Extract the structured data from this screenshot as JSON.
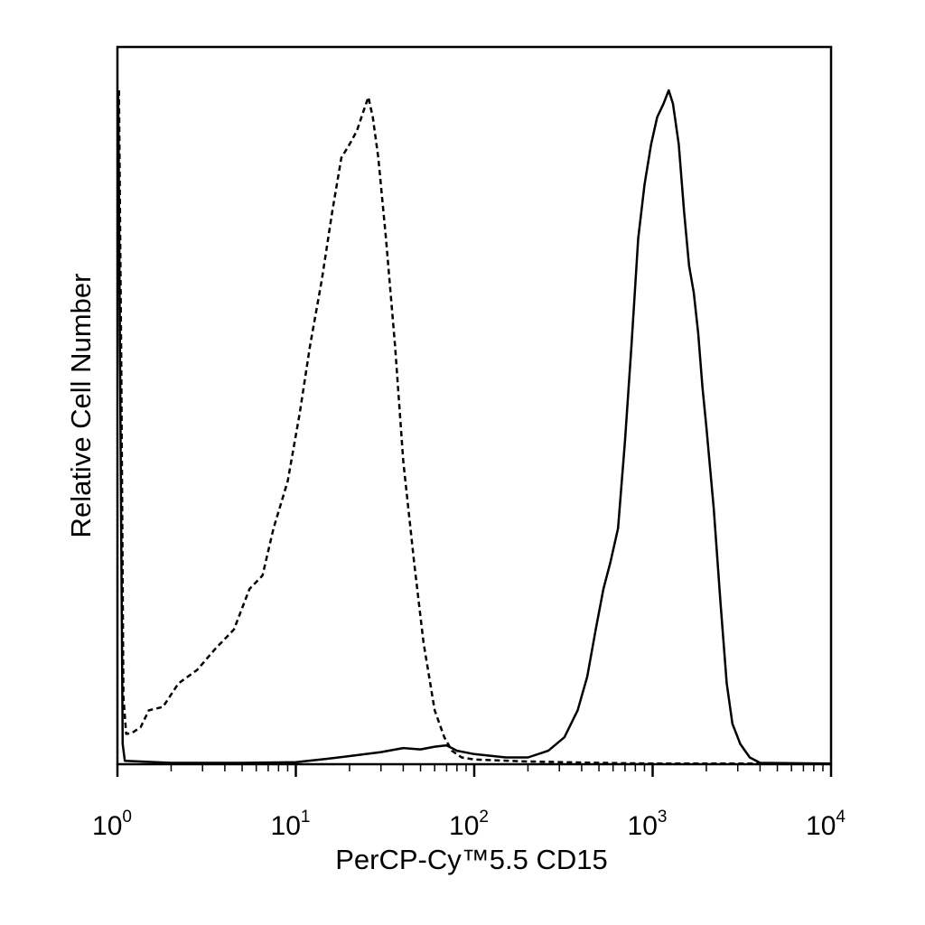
{
  "chart_data": {
    "type": "line",
    "title": "",
    "xlabel": "PerCP-Cy™5.5 CD15",
    "ylabel": "Relative Cell Number",
    "x_scale": "log",
    "xlim": [
      1,
      10000
    ],
    "ylim": [
      0,
      100
    ],
    "grid": false,
    "legend": "none",
    "x_ticks": [
      {
        "base": "10",
        "exp": "0",
        "value": 1
      },
      {
        "base": "10",
        "exp": "1",
        "value": 10
      },
      {
        "base": "10",
        "exp": "2",
        "value": 100
      },
      {
        "base": "10",
        "exp": "3",
        "value": 1000
      },
      {
        "base": "10",
        "exp": "4",
        "value": 10000
      }
    ],
    "series": [
      {
        "style": "dashed",
        "color": "#000000",
        "points": [
          [
            1.02,
            100
          ],
          [
            1.05,
            60
          ],
          [
            1.08,
            10
          ],
          [
            1.12,
            4.5
          ],
          [
            1.2,
            4.6
          ],
          [
            1.35,
            5.5
          ],
          [
            1.5,
            8
          ],
          [
            1.8,
            8.5
          ],
          [
            2.2,
            12
          ],
          [
            2.8,
            14
          ],
          [
            3.5,
            17
          ],
          [
            4.5,
            20
          ],
          [
            5.5,
            26
          ],
          [
            6.5,
            28
          ],
          [
            7.5,
            35
          ],
          [
            9,
            42
          ],
          [
            10.5,
            52
          ],
          [
            12,
            62
          ],
          [
            14,
            72
          ],
          [
            16,
            82
          ],
          [
            18,
            90
          ],
          [
            20,
            92
          ],
          [
            22,
            94
          ],
          [
            24,
            97
          ],
          [
            25.5,
            99
          ],
          [
            27,
            96
          ],
          [
            29,
            90
          ],
          [
            32,
            78
          ],
          [
            36,
            62
          ],
          [
            40,
            45
          ],
          [
            46,
            30
          ],
          [
            52,
            18
          ],
          [
            60,
            8
          ],
          [
            68,
            4
          ],
          [
            75,
            2
          ],
          [
            85,
            1
          ],
          [
            100,
            0.7
          ],
          [
            200,
            0.4
          ],
          [
            500,
            0.2
          ],
          [
            1000,
            0.1
          ],
          [
            5000,
            0.1
          ],
          [
            10000,
            0.1
          ]
        ]
      },
      {
        "style": "solid",
        "color": "#000000",
        "points": [
          [
            1.01,
            100
          ],
          [
            1.04,
            50
          ],
          [
            1.07,
            3
          ],
          [
            1.1,
            0.5
          ],
          [
            2,
            0.2
          ],
          [
            5,
            0.2
          ],
          [
            10,
            0.3
          ],
          [
            15,
            0.8
          ],
          [
            20,
            1.2
          ],
          [
            30,
            1.8
          ],
          [
            40,
            2.4
          ],
          [
            50,
            2.2
          ],
          [
            60,
            2.6
          ],
          [
            70,
            2.8
          ],
          [
            80,
            2.0
          ],
          [
            100,
            1.5
          ],
          [
            150,
            1.0
          ],
          [
            200,
            1.0
          ],
          [
            260,
            2.0
          ],
          [
            320,
            4
          ],
          [
            380,
            8
          ],
          [
            430,
            13
          ],
          [
            480,
            20
          ],
          [
            530,
            26
          ],
          [
            580,
            30
          ],
          [
            640,
            35
          ],
          [
            700,
            48
          ],
          [
            760,
            62
          ],
          [
            830,
            78
          ],
          [
            900,
            86
          ],
          [
            980,
            92
          ],
          [
            1060,
            96
          ],
          [
            1150,
            98
          ],
          [
            1230,
            100
          ],
          [
            1300,
            98
          ],
          [
            1400,
            92
          ],
          [
            1500,
            82
          ],
          [
            1600,
            74
          ],
          [
            1700,
            70
          ],
          [
            1800,
            64
          ],
          [
            1900,
            56
          ],
          [
            2000,
            50
          ],
          [
            2200,
            38
          ],
          [
            2400,
            24
          ],
          [
            2600,
            12
          ],
          [
            2800,
            6
          ],
          [
            3100,
            3
          ],
          [
            3500,
            1
          ],
          [
            4000,
            0.2
          ],
          [
            10000,
            0.1
          ]
        ]
      }
    ]
  }
}
